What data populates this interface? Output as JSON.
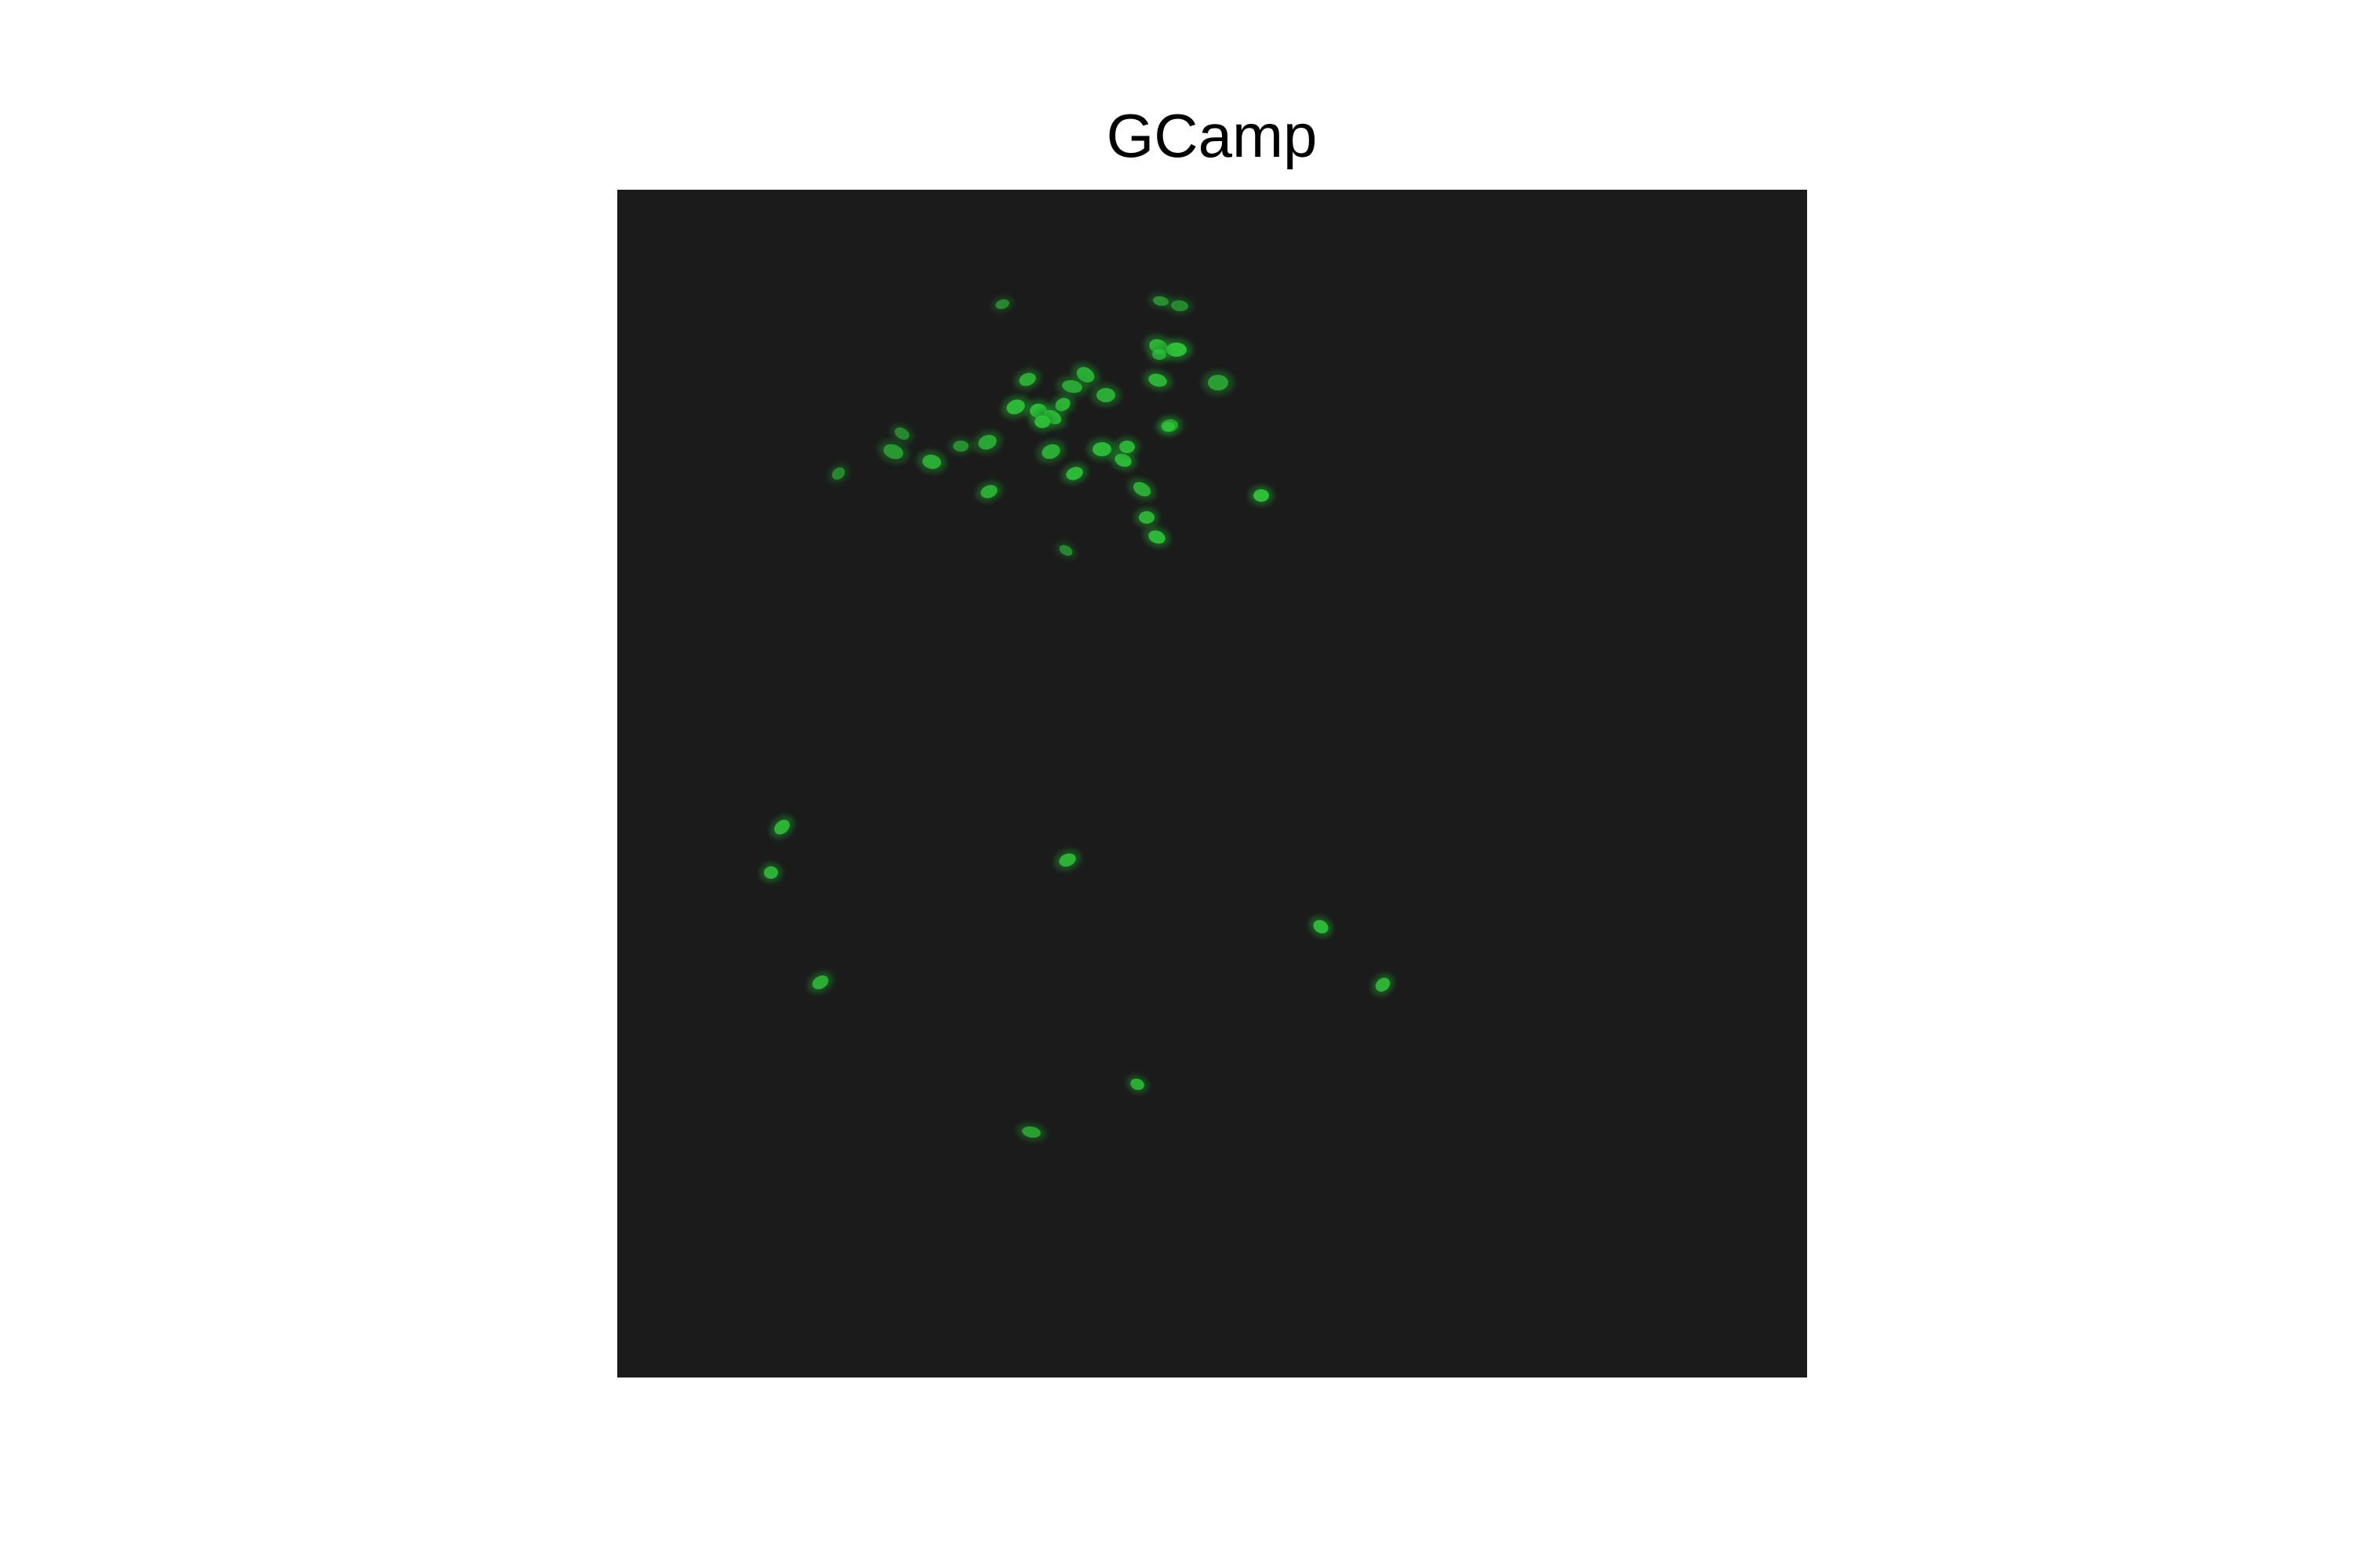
{
  "figure": {
    "title": "GCamp"
  },
  "image": {
    "description_channel": "GCamp",
    "background_color": "#1b1b1b",
    "cell_color": "#2fc43a",
    "cell_glow_color": "#1f8f2a"
  }
}
